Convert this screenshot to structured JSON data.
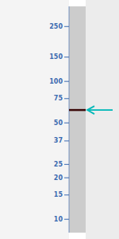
{
  "chart_data": {
    "type": "gel",
    "log": "y",
    "ylim": [
      8,
      350
    ],
    "yticks": [
      250,
      150,
      100,
      75,
      50,
      37,
      25,
      20,
      15,
      10
    ],
    "values": [
      62
    ],
    "color": "#3a0808"
  }
}
